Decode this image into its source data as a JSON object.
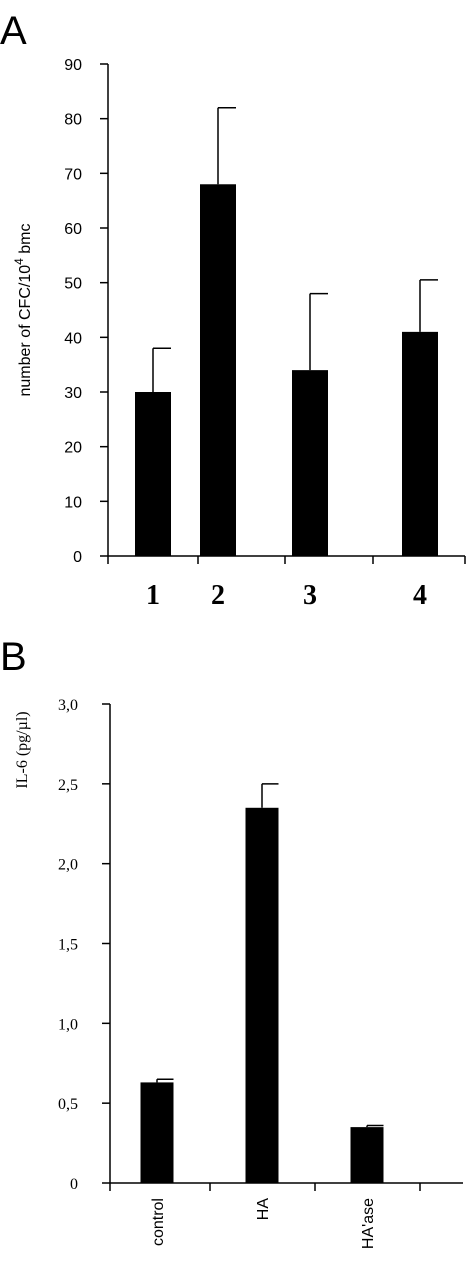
{
  "chart_data": [
    {
      "panel": "A",
      "type": "bar",
      "ylabel": "number of CFC/10",
      "ylabel_sup": "4",
      "ylabel_suffix": " bmc",
      "ylim": [
        0,
        90
      ],
      "yticks": [
        "0",
        "10",
        "20",
        "30",
        "40",
        "50",
        "60",
        "70",
        "80",
        "90"
      ],
      "categories": [
        "1",
        "2",
        "3",
        "4"
      ],
      "values": [
        30,
        68,
        34,
        41
      ],
      "errors": [
        8,
        14,
        14,
        9.5
      ]
    },
    {
      "panel": "B",
      "type": "bar",
      "ylabel": "IL-6 (pg/µl)",
      "ylim": [
        0,
        3
      ],
      "yticks": [
        "0",
        "0,5",
        "1,0",
        "1,5",
        "2,0",
        "2,5",
        "3,0"
      ],
      "categories": [
        "control",
        "HA",
        "HA'ase"
      ],
      "values": [
        0.63,
        2.35,
        0.35
      ],
      "errors": [
        0.02,
        0.15,
        0.01
      ]
    }
  ]
}
